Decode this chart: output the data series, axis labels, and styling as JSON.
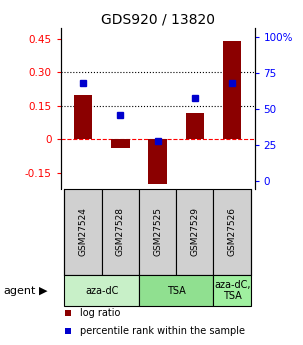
{
  "title": "GDS920 / 13820",
  "samples": [
    "GSM27524",
    "GSM27528",
    "GSM27525",
    "GSM27529",
    "GSM27526"
  ],
  "log_ratios": [
    0.2,
    -0.04,
    -0.2,
    0.12,
    0.44
  ],
  "percentile_ranks": [
    0.68,
    0.46,
    0.28,
    0.58,
    0.68
  ],
  "ylim_left": [
    -0.22,
    0.5
  ],
  "yticks_left": [
    -0.15,
    0,
    0.15,
    0.3,
    0.45
  ],
  "ylim_right": [
    -0.0533,
    1.067
  ],
  "yticks_right": [
    0,
    0.25,
    0.5,
    0.75,
    1.0
  ],
  "ytick_labels_right": [
    "0",
    "25",
    "50",
    "75",
    "100%"
  ],
  "ytick_labels_left": [
    "-0.15",
    "0",
    "0.15",
    "0.30",
    "0.45"
  ],
  "hlines": [
    0.15,
    0.3
  ],
  "bar_color": "#8B0000",
  "dot_color": "#0000CD",
  "agent_groups": [
    {
      "label": "aza-dC",
      "samples": [
        0,
        1
      ],
      "color": "#c8f0c8"
    },
    {
      "label": "TSA",
      "samples": [
        2,
        3
      ],
      "color": "#90e090"
    },
    {
      "label": "aza-dC,\nTSA",
      "samples": [
        4
      ],
      "color": "#a0f0a0"
    }
  ],
  "legend_items": [
    {
      "color": "#8B0000",
      "label": "log ratio"
    },
    {
      "color": "#0000CD",
      "label": "percentile rank within the sample"
    }
  ],
  "bar_width": 0.5,
  "agent_label": "agent",
  "sample_cell_color": "#d0d0d0",
  "fig_width": 3.03,
  "fig_height": 3.45,
  "dpi": 100
}
